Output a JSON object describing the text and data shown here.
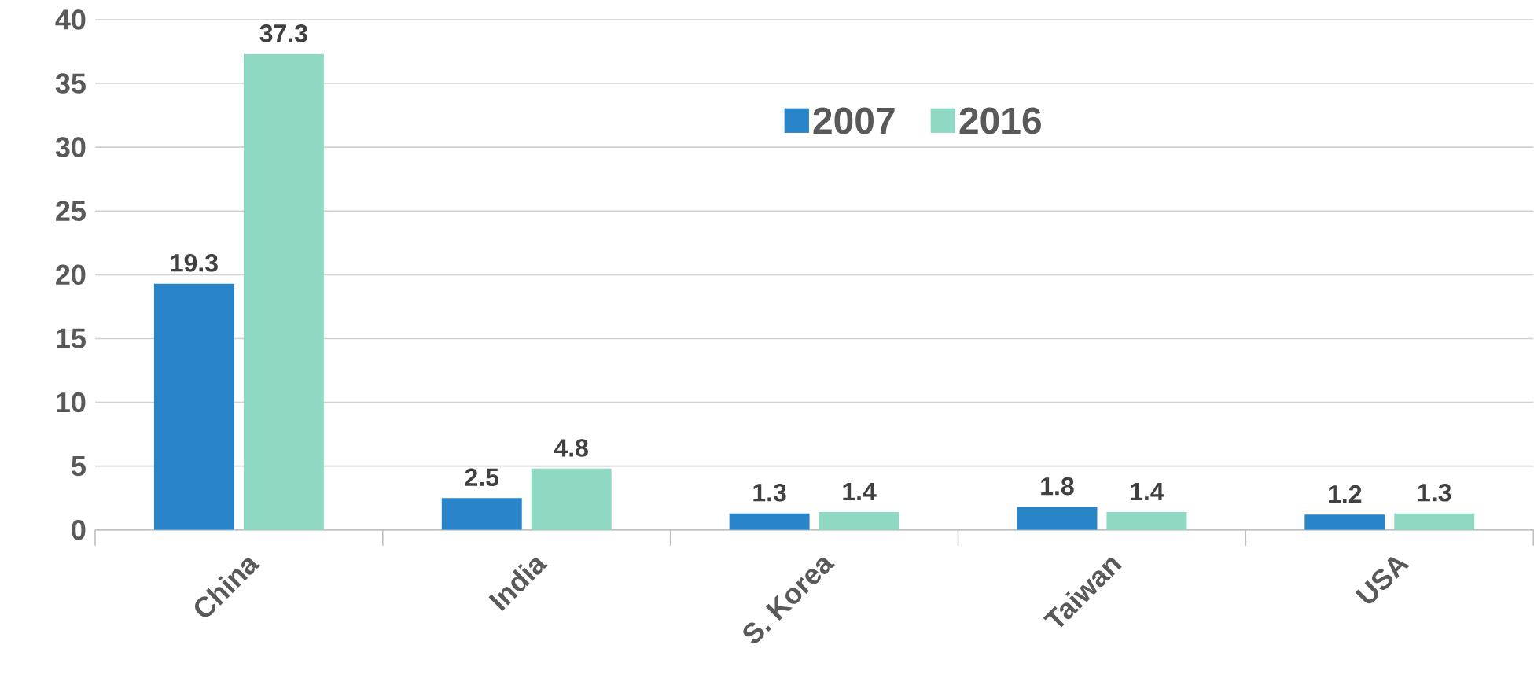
{
  "chart_data": {
    "type": "bar",
    "categories": [
      "China",
      "India",
      "S. Korea",
      "Taiwan",
      "USA"
    ],
    "series": [
      {
        "name": "2007",
        "color": "#2a84c8",
        "values": [
          19.3,
          2.5,
          1.3,
          1.8,
          1.2
        ]
      },
      {
        "name": "2016",
        "color": "#8fd8c3",
        "values": [
          37.3,
          4.8,
          1.4,
          1.4,
          1.3
        ]
      }
    ],
    "ylim": [
      0,
      40
    ],
    "yticks": [
      0,
      5,
      10,
      15,
      20,
      25,
      30,
      35,
      40
    ],
    "grid": "y",
    "legend": "top",
    "data_labels": true
  }
}
